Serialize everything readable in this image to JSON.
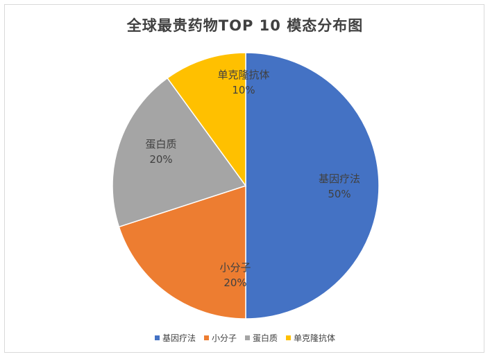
{
  "chart_data": {
    "type": "pie",
    "title": "全球最贵药物TOP 10 模态分布图",
    "categories": [
      "基因疗法",
      "小分子",
      "蛋白质",
      "单克隆抗体"
    ],
    "values": [
      50,
      20,
      20,
      10
    ],
    "value_labels": [
      "50%",
      "20%",
      "20%",
      "10%"
    ],
    "colors": [
      "#4472c4",
      "#ed7d31",
      "#a5a5a5",
      "#ffc000"
    ],
    "legend_position": "bottom"
  }
}
